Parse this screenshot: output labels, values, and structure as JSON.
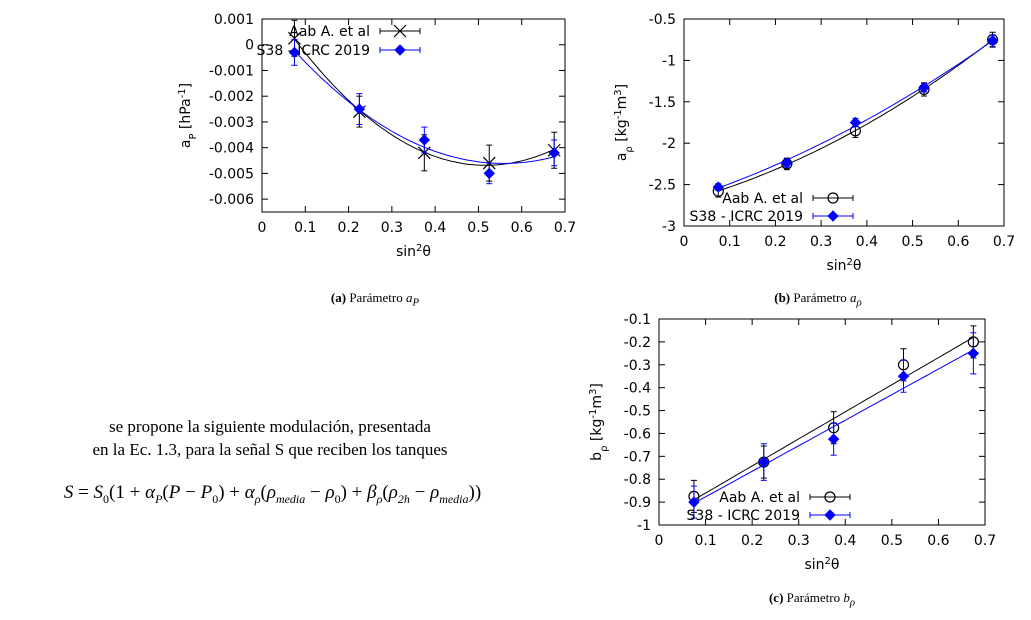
{
  "chart_data": [
    {
      "id": "a",
      "type": "scatter",
      "xlabel": "sin²θ",
      "ylabel": "a_P [hPa^-1]",
      "xlim": [
        0,
        0.7
      ],
      "ylim": [
        -0.0065,
        0.001
      ],
      "xticks": [
        "0",
        "0.1",
        "0.2",
        "0.3",
        "0.4",
        "0.5",
        "0.6",
        "0.7"
      ],
      "yticks": [
        "0.001",
        "0",
        "-0.001",
        "-0.002",
        "-0.003",
        "-0.004",
        "-0.005",
        "-0.006"
      ],
      "legend_position": "top-right",
      "series": [
        {
          "name": "Aab A. et al",
          "color": "#000000",
          "marker": "x",
          "x": [
            0.075,
            0.225,
            0.375,
            0.525,
            0.675
          ],
          "y": [
            0.00025,
            -0.0026,
            -0.0042,
            -0.0046,
            -0.0041
          ],
          "yerr": [
            0.0007,
            0.0006,
            0.0007,
            0.0007,
            0.0007
          ],
          "fit": "quadratic"
        },
        {
          "name": "S38 - ICRC 2019",
          "color": "#0000ff",
          "marker": "diamond",
          "x": [
            0.075,
            0.225,
            0.375,
            0.525,
            0.675
          ],
          "y": [
            -0.0003,
            -0.0025,
            -0.0037,
            -0.005,
            -0.0042
          ],
          "yerr": [
            0.0005,
            0.0006,
            0.0005,
            0.0004,
            0.0005
          ],
          "fit": "quadratic"
        }
      ]
    },
    {
      "id": "b",
      "type": "scatter",
      "xlabel": "sin²θ",
      "ylabel": "a_ρ [kg^-1m^3]",
      "xlim": [
        0,
        0.7
      ],
      "ylim": [
        -3,
        -0.5
      ],
      "xticks": [
        "0",
        "0.1",
        "0.2",
        "0.3",
        "0.4",
        "0.5",
        "0.6",
        "0.7"
      ],
      "yticks": [
        "-0.5",
        "-1",
        "-1.5",
        "-2",
        "-2.5",
        "-3"
      ],
      "legend_position": "bottom-right",
      "series": [
        {
          "name": "Aab A. et al",
          "color": "#000000",
          "marker": "circle",
          "x": [
            0.075,
            0.225,
            0.375,
            0.525,
            0.675
          ],
          "y": [
            -2.58,
            -2.25,
            -1.85,
            -1.35,
            -0.75
          ],
          "yerr": [
            0.07,
            0.07,
            0.08,
            0.08,
            0.09
          ],
          "fit": "quadratic"
        },
        {
          "name": "S38 - ICRC 2019",
          "color": "#0000ff",
          "marker": "diamond",
          "x": [
            0.075,
            0.225,
            0.375,
            0.525,
            0.675
          ],
          "y": [
            -2.53,
            -2.24,
            -1.75,
            -1.33,
            -0.76
          ],
          "yerr": [
            0.04,
            0.05,
            0.05,
            0.05,
            0.07
          ],
          "fit": "quadratic"
        }
      ]
    },
    {
      "id": "c",
      "type": "scatter",
      "xlabel": "sin²θ",
      "ylabel": "b_ρ [kg^-1m^3]",
      "xlim": [
        0,
        0.7
      ],
      "ylim": [
        -1,
        -0.1
      ],
      "xticks": [
        "0",
        "0.1",
        "0.2",
        "0.3",
        "0.4",
        "0.5",
        "0.6",
        "0.7"
      ],
      "yticks": [
        "-0.1",
        "-0.2",
        "-0.3",
        "-0.4",
        "-0.5",
        "-0.6",
        "-0.7",
        "-0.8",
        "-0.9",
        "-1"
      ],
      "legend_position": "bottom-right",
      "series": [
        {
          "name": "Aab A. et al",
          "color": "#000000",
          "marker": "circle",
          "x": [
            0.075,
            0.225,
            0.375,
            0.525,
            0.675
          ],
          "y": [
            -0.875,
            -0.725,
            -0.575,
            -0.3,
            -0.2
          ],
          "yerr": [
            0.07,
            0.07,
            0.07,
            0.07,
            0.07
          ],
          "fit": "linear"
        },
        {
          "name": "S38 - ICRC 2019",
          "color": "#0000ff",
          "marker": "diamond",
          "x": [
            0.075,
            0.225,
            0.375,
            0.525,
            0.675
          ],
          "y": [
            -0.9,
            -0.725,
            -0.625,
            -0.35,
            -0.25
          ],
          "yerr": [
            0.07,
            0.08,
            0.07,
            0.07,
            0.09
          ],
          "fit": "linear"
        }
      ]
    }
  ],
  "captions": {
    "a": {
      "label": "(a)",
      "text": "Parámetro",
      "symbol": "a",
      "sub": "P"
    },
    "b": {
      "label": "(b)",
      "text": "Parámetro",
      "symbol": "a",
      "sub": "ρ"
    },
    "c": {
      "label": "(c)",
      "text": "Parámetro",
      "symbol": "b",
      "sub": "ρ"
    }
  },
  "text": {
    "line1": "se propone la siguiente modulación, presentada",
    "line2": "en la Ec. 1.3, para la señal S que reciben los tanques"
  },
  "formula": {
    "lhs": "S",
    "s0": "S",
    "s0_sub": "0",
    "one": "1",
    "alpha": "α",
    "P": "P",
    "P0_sub": "0",
    "rho": "ρ",
    "media_sub": "media",
    "zero_sub": "0",
    "beta": "β",
    "twoh_sub": "2h"
  }
}
